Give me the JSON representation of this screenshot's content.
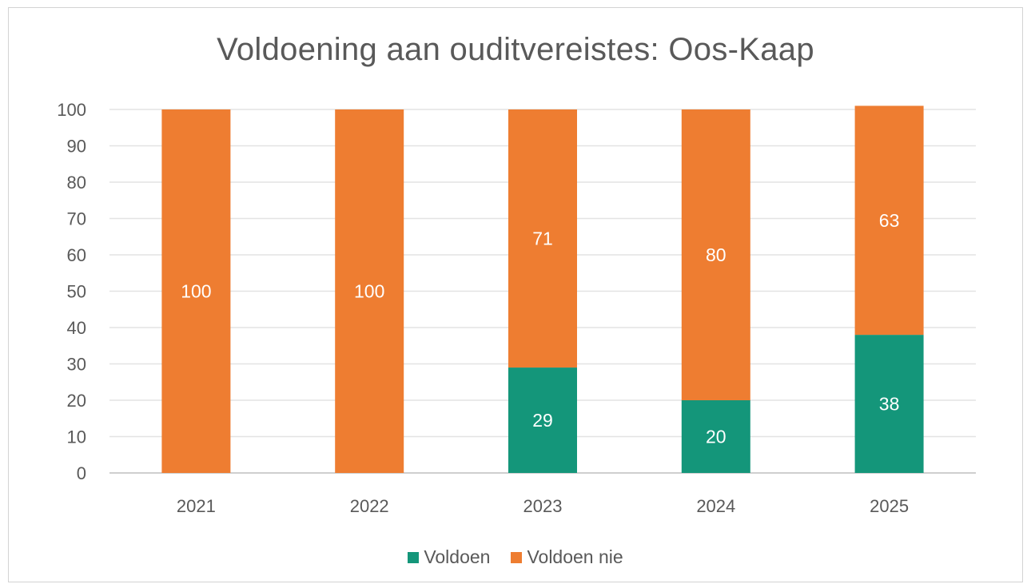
{
  "chart_data": {
    "type": "bar",
    "stacked": true,
    "title": "Voldoening aan ouditvereistes: Oos-Kaap",
    "xlabel": "",
    "ylabel": "",
    "categories": [
      "2021",
      "2022",
      "2023",
      "2024",
      "2025"
    ],
    "series": [
      {
        "name": "Voldoen",
        "values": [
          0,
          0,
          29,
          20,
          38
        ],
        "color": "#14967a"
      },
      {
        "name": "Voldoen nie",
        "values": [
          100,
          100,
          71,
          80,
          63
        ],
        "color": "#ee7d31"
      }
    ],
    "ylim": [
      0,
      100
    ],
    "yticks": [
      "0",
      "10",
      "20",
      "30",
      "40",
      "50",
      "60",
      "70",
      "80",
      "90",
      "100"
    ],
    "grid": true,
    "legend": "bottom",
    "data_labels": true
  }
}
